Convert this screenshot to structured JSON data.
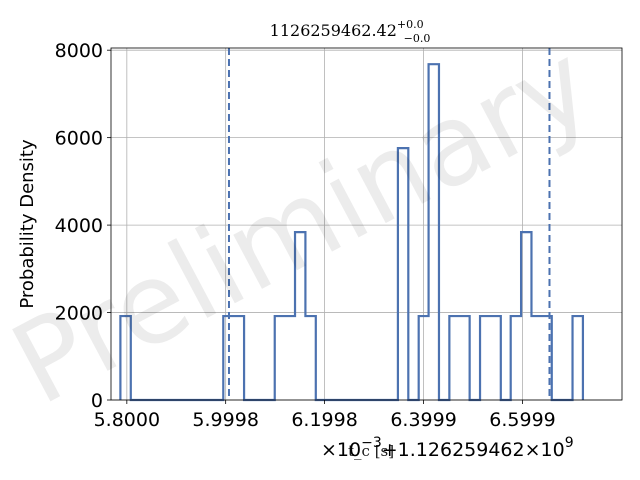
{
  "chart_data": {
    "type": "step",
    "title": {
      "base": "1126259462.42",
      "sup": "+0.0",
      "sub": "−0.0"
    },
    "xlabel": "t_c [s]",
    "xlabel_prefix": "×10",
    "xlabel_exponent": "−3",
    "x_offset_text": "+1.126259462×10",
    "x_offset_exponent": "9",
    "ylabel": "Probability Density",
    "xlim": [
      5.768,
      6.801
    ],
    "ylim": [
      0,
      8050
    ],
    "x_ticks": [
      {
        "value": 5.8,
        "label": "5.8000"
      },
      {
        "value": 5.9998,
        "label": "5.9998"
      },
      {
        "value": 6.1998,
        "label": "6.1998"
      },
      {
        "value": 6.3999,
        "label": "6.3999"
      },
      {
        "value": 6.5999,
        "label": "6.5999"
      }
    ],
    "y_ticks": [
      0,
      2000,
      4000,
      6000,
      8000
    ],
    "grid": true,
    "series": [
      {
        "color": "#4c72b0",
        "bin_edges": [
          5.787,
          5.808,
          5.829,
          5.85,
          5.87,
          5.891,
          5.912,
          5.933,
          5.953,
          5.974,
          5.995,
          6.016,
          6.037,
          6.057,
          6.078,
          6.099,
          6.12,
          6.14,
          6.161,
          6.182,
          6.203,
          6.223,
          6.244,
          6.265,
          6.286,
          6.306,
          6.327,
          6.348,
          6.369,
          6.39,
          6.41,
          6.431,
          6.452,
          6.473,
          6.493,
          6.514,
          6.535,
          6.556,
          6.576,
          6.597,
          6.618,
          6.639,
          6.659,
          6.68,
          6.701,
          6.722
        ],
        "densities": [
          1920,
          0,
          0,
          0,
          0,
          0,
          0,
          0,
          0,
          0,
          1920,
          1920,
          0,
          0,
          0,
          1920,
          1920,
          3840,
          1920,
          0,
          0,
          0,
          0,
          0,
          0,
          0,
          0,
          5760,
          0,
          1920,
          7680,
          0,
          1920,
          1920,
          0,
          1920,
          1920,
          0,
          1920,
          3840,
          1920,
          1920,
          0,
          0,
          1920
        ]
      }
    ],
    "vlines": [
      {
        "x": 6.0065,
        "style": "dashed",
        "color": "#4c72b0"
      },
      {
        "x": 6.6544,
        "style": "dashed",
        "color": "#4c72b0"
      }
    ],
    "watermark": "Preliminary"
  }
}
